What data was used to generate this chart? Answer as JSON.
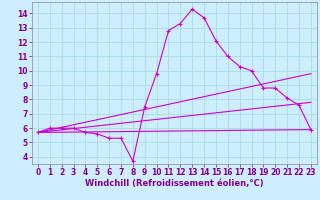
{
  "background_color": "#cceeff",
  "grid_color": "#aadddd",
  "line_color": "#cc00cc",
  "xlabel": "Windchill (Refroidissement éolien,°C)",
  "xlabel_fontsize": 6.0,
  "ylim": [
    3.5,
    14.8
  ],
  "xlim": [
    -0.5,
    23.5
  ],
  "yticks": [
    4,
    5,
    6,
    7,
    8,
    9,
    10,
    11,
    12,
    13,
    14
  ],
  "xticks": [
    0,
    1,
    2,
    3,
    4,
    5,
    6,
    7,
    8,
    9,
    10,
    11,
    12,
    13,
    14,
    15,
    16,
    17,
    18,
    19,
    20,
    21,
    22,
    23
  ],
  "curve1_x": [
    0,
    1,
    2,
    3,
    4,
    5,
    6,
    7,
    8,
    9,
    10,
    11,
    12,
    13,
    14,
    15,
    16,
    17,
    18,
    19,
    20,
    21,
    22,
    23
  ],
  "curve1_y": [
    5.7,
    6.0,
    6.0,
    6.0,
    5.7,
    5.6,
    5.3,
    5.3,
    3.7,
    7.5,
    9.8,
    12.8,
    13.3,
    14.3,
    13.7,
    12.1,
    11.0,
    10.3,
    10.0,
    8.8,
    8.8,
    8.1,
    7.6,
    5.9
  ],
  "curve2_x": [
    0,
    23
  ],
  "curve2_y": [
    5.7,
    5.9
  ],
  "curve3_x": [
    0,
    23
  ],
  "curve3_y": [
    5.7,
    9.8
  ],
  "curve4_x": [
    0,
    23
  ],
  "curve4_y": [
    5.7,
    7.8
  ],
  "tick_fontsize": 5.5,
  "markersize": 3.5,
  "linewidth": 0.8
}
